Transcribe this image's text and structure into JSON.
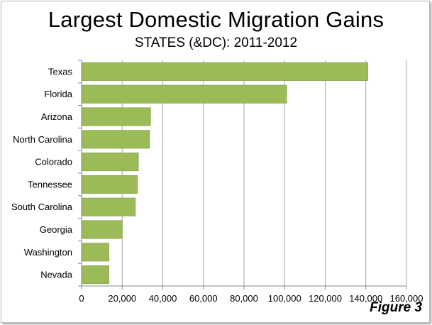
{
  "title": "Largest Domestic Migration Gains",
  "subtitle": "STATES (&DC): 2011-2012",
  "figure_label": "Figure 3",
  "colors": {
    "bar": "#9bbb59",
    "bar_edge": "#7f9e42",
    "grid": "#a6a6a6",
    "axis": "#888888",
    "text": "#000000"
  },
  "chart_data": {
    "type": "bar",
    "orientation": "horizontal",
    "title": "Largest Domestic Migration Gains",
    "subtitle": "STATES (&DC): 2011-2012",
    "categories": [
      "Texas",
      "Florida",
      "Arizona",
      "North Carolina",
      "Colorado",
      "Tennessee",
      "South Carolina",
      "Georgia",
      "Washington",
      "Nevada"
    ],
    "values": [
      141000,
      101000,
      34000,
      33500,
      28000,
      27500,
      26500,
      20000,
      13500,
      13500
    ],
    "xlim": [
      0,
      160000
    ],
    "xticks": [
      "0",
      "20,000",
      "40,000",
      "60,000",
      "80,000",
      "100,000",
      "120,000",
      "140,000",
      "160,000"
    ],
    "grid": true
  }
}
